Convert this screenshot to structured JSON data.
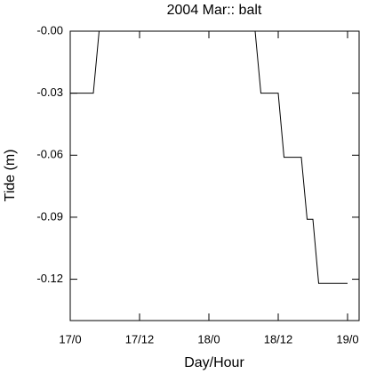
{
  "chart_data": {
    "type": "line",
    "title": "2004 Mar:: balt",
    "x_label": "Day/Hour",
    "y_label": "Tide (m)",
    "x": [
      0,
      4,
      5,
      32,
      33,
      36,
      37,
      40,
      41,
      42,
      43,
      48
    ],
    "series": [
      {
        "color": "#000000",
        "values": [
          -0.03,
          -0.03,
          0,
          0,
          -0.03,
          -0.03,
          -0.061,
          -0.061,
          -0.091,
          -0.091,
          -0.122,
          -0.122
        ]
      }
    ],
    "xlim": [
      0,
      50
    ],
    "xticks": [
      {
        "value": 0,
        "label": "17/0"
      },
      {
        "value": 12,
        "label": "17/12"
      },
      {
        "value": 24,
        "label": "18/0"
      },
      {
        "value": 36,
        "label": "18/12"
      },
      {
        "value": 48,
        "label": "19/0"
      }
    ],
    "ylim": [
      -0.14,
      0
    ],
    "yticks": [
      {
        "value": 0,
        "label": "-0.00"
      },
      -0.03,
      -0.06,
      -0.09,
      -0.12
    ]
  }
}
